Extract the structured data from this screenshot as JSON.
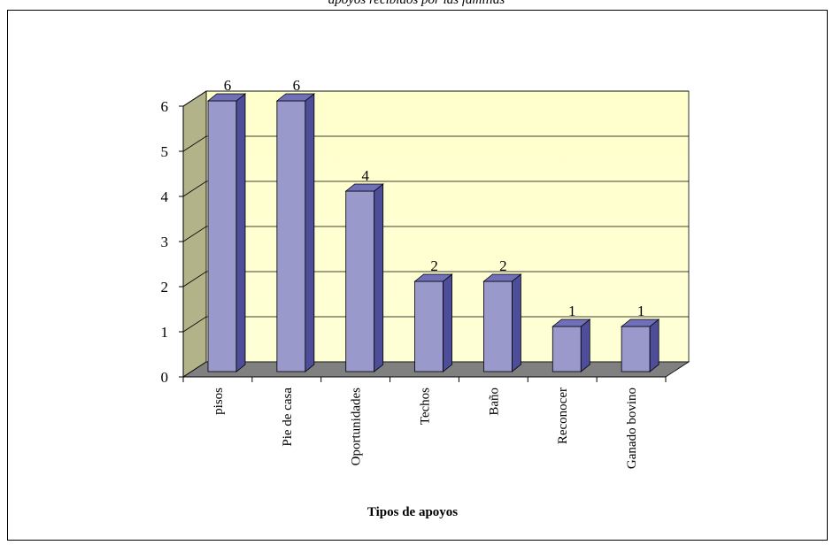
{
  "caption": "apoyos recibidos por las familias",
  "chart_data": {
    "type": "bar",
    "style": "3d-column",
    "title": "",
    "xlabel": "Tipos de apoyos",
    "ylabel": "",
    "categories": [
      "pisos",
      "Pie de casa",
      "Oportunidades",
      "Techos",
      "Baño",
      "Reconocer",
      "Ganado bovino"
    ],
    "values": [
      6,
      6,
      4,
      2,
      2,
      1,
      1
    ],
    "ylim": [
      0,
      6
    ],
    "yticks": [
      0,
      1,
      2,
      3,
      4,
      5,
      6
    ],
    "grid": true,
    "legend": "none",
    "colors": {
      "bar_front": "#9999cc",
      "bar_side": "#4d4d99",
      "bar_top": "#7070b8",
      "back_wall": "#ffffcc",
      "side_wall": "#b3b38a",
      "floor": "#808080"
    }
  }
}
